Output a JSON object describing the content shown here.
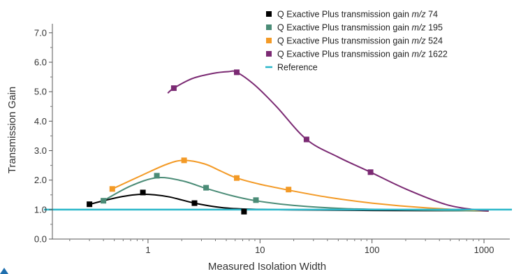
{
  "chart_data": {
    "type": "line",
    "xlabel": "Measured Isolation Width",
    "ylabel": "Transmission Gain",
    "x_scale": "log",
    "xlim": [
      0.14,
      1700
    ],
    "ylim": [
      0,
      7.4
    ],
    "x_ticks": [
      {
        "value": 1,
        "label": "1"
      },
      {
        "value": 10,
        "label": "10"
      },
      {
        "value": 100,
        "label": "100"
      },
      {
        "value": 1000,
        "label": "1000"
      }
    ],
    "y_ticks": [
      {
        "value": 0,
        "label": "0.0"
      },
      {
        "value": 1,
        "label": "1.0"
      },
      {
        "value": 2,
        "label": "2.0"
      },
      {
        "value": 3,
        "label": "3.0"
      },
      {
        "value": 4,
        "label": "4.0"
      },
      {
        "value": 5,
        "label": "5.0"
      },
      {
        "value": 6,
        "label": "6.0"
      },
      {
        "value": 7,
        "label": "7.0"
      }
    ],
    "grid": false,
    "legend_position": "top-right",
    "reference": {
      "name": "Reference",
      "value": 1.0,
      "color": "#29b6c9"
    },
    "series": [
      {
        "name_prefix": "Q Exactive Plus transmission gain ",
        "name_mz": "m/z",
        "name_value": " 74",
        "color": "#000000",
        "points": [
          {
            "x": 0.3,
            "y": 1.18
          },
          {
            "x": 0.9,
            "y": 1.58
          },
          {
            "x": 2.6,
            "y": 1.22
          },
          {
            "x": 7.2,
            "y": 0.93
          }
        ],
        "curve": [
          {
            "x": 0.3,
            "y": 1.18
          },
          {
            "x": 0.55,
            "y": 1.42
          },
          {
            "x": 0.9,
            "y": 1.52
          },
          {
            "x": 1.5,
            "y": 1.44
          },
          {
            "x": 2.6,
            "y": 1.22
          },
          {
            "x": 4.5,
            "y": 1.07
          },
          {
            "x": 7.2,
            "y": 1.02
          },
          {
            "x": 20,
            "y": 0.99
          },
          {
            "x": 100,
            "y": 0.97
          },
          {
            "x": 1100,
            "y": 0.96
          }
        ]
      },
      {
        "name_prefix": "Q Exactive Plus transmission gain ",
        "name_mz": "m/z",
        "name_value": " 195",
        "color": "#4b8c77",
        "points": [
          {
            "x": 0.4,
            "y": 1.3
          },
          {
            "x": 1.2,
            "y": 2.15
          },
          {
            "x": 3.3,
            "y": 1.74
          },
          {
            "x": 9.2,
            "y": 1.32
          }
        ],
        "curve": [
          {
            "x": 0.4,
            "y": 1.3
          },
          {
            "x": 0.7,
            "y": 1.8
          },
          {
            "x": 1.2,
            "y": 2.08
          },
          {
            "x": 2.0,
            "y": 1.98
          },
          {
            "x": 3.3,
            "y": 1.72
          },
          {
            "x": 5.5,
            "y": 1.48
          },
          {
            "x": 9.2,
            "y": 1.3
          },
          {
            "x": 20,
            "y": 1.14
          },
          {
            "x": 60,
            "y": 1.03
          },
          {
            "x": 300,
            "y": 0.98
          },
          {
            "x": 1100,
            "y": 0.95
          }
        ]
      },
      {
        "name_prefix": "Q Exactive Plus transmission gain ",
        "name_mz": "m/z",
        "name_value": " 524",
        "color": "#f39a26",
        "points": [
          {
            "x": 0.48,
            "y": 1.7
          },
          {
            "x": 2.1,
            "y": 2.67
          },
          {
            "x": 6.2,
            "y": 2.07
          },
          {
            "x": 18,
            "y": 1.68
          }
        ],
        "curve": [
          {
            "x": 0.48,
            "y": 1.7
          },
          {
            "x": 0.9,
            "y": 2.18
          },
          {
            "x": 1.5,
            "y": 2.55
          },
          {
            "x": 2.1,
            "y": 2.67
          },
          {
            "x": 3.2,
            "y": 2.55
          },
          {
            "x": 4.5,
            "y": 2.3
          },
          {
            "x": 6.2,
            "y": 2.07
          },
          {
            "x": 10,
            "y": 1.86
          },
          {
            "x": 18,
            "y": 1.66
          },
          {
            "x": 40,
            "y": 1.42
          },
          {
            "x": 100,
            "y": 1.22
          },
          {
            "x": 300,
            "y": 1.06
          },
          {
            "x": 1100,
            "y": 0.95
          }
        ]
      },
      {
        "name_prefix": "Q Exactive Plus transmission gain ",
        "name_mz": "m/z",
        "name_value": " 1622",
        "color": "#7b2a73",
        "points": [
          {
            "x": 1.7,
            "y": 5.12
          },
          {
            "x": 6.2,
            "y": 5.66
          },
          {
            "x": 26,
            "y": 3.38
          },
          {
            "x": 97,
            "y": 2.27
          }
        ],
        "curve": [
          {
            "x": 1.5,
            "y": 4.95
          },
          {
            "x": 1.7,
            "y": 5.12
          },
          {
            "x": 2.5,
            "y": 5.45
          },
          {
            "x": 3.8,
            "y": 5.62
          },
          {
            "x": 5.2,
            "y": 5.68
          },
          {
            "x": 6.2,
            "y": 5.66
          },
          {
            "x": 9,
            "y": 5.22
          },
          {
            "x": 14,
            "y": 4.5
          },
          {
            "x": 26,
            "y": 3.38
          },
          {
            "x": 50,
            "y": 2.78
          },
          {
            "x": 97,
            "y": 2.27
          },
          {
            "x": 200,
            "y": 1.7
          },
          {
            "x": 450,
            "y": 1.18
          },
          {
            "x": 800,
            "y": 1.0
          },
          {
            "x": 1100,
            "y": 0.95
          }
        ]
      }
    ]
  }
}
